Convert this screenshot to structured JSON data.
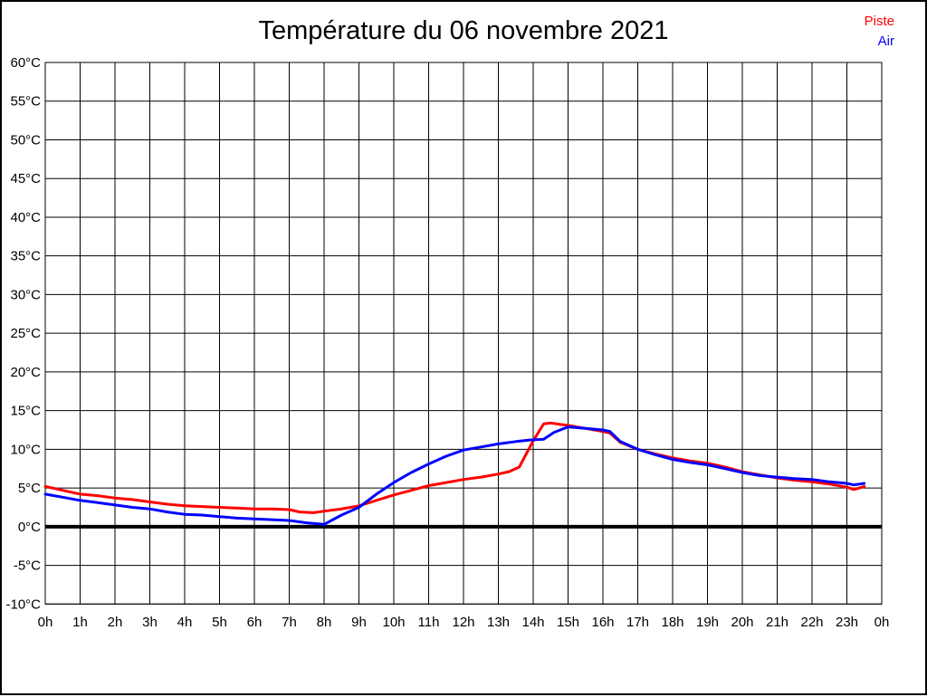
{
  "title": "Température du 06 novembre 2021",
  "legend": {
    "position": "top-right",
    "items": [
      {
        "label": "Piste",
        "color": "#ff0000"
      },
      {
        "label": "Air",
        "color": "#0000ff"
      }
    ]
  },
  "chart_data": {
    "type": "line",
    "title": "Température du 06 novembre 2021",
    "xlabel": "",
    "ylabel": "",
    "xlim": [
      0,
      24
    ],
    "ylim": [
      -10,
      60
    ],
    "grid": true,
    "grid_color": "#000000",
    "background_color": "#ffffff",
    "legend_position": "top-right",
    "reference_line": {
      "value": 0,
      "color": "#000000",
      "width": 4
    },
    "x_ticks": [
      {
        "value": 0,
        "label": "0h"
      },
      {
        "value": 1,
        "label": "1h"
      },
      {
        "value": 2,
        "label": "2h"
      },
      {
        "value": 3,
        "label": "3h"
      },
      {
        "value": 4,
        "label": "4h"
      },
      {
        "value": 5,
        "label": "5h"
      },
      {
        "value": 6,
        "label": "6h"
      },
      {
        "value": 7,
        "label": "7h"
      },
      {
        "value": 8,
        "label": "8h"
      },
      {
        "value": 9,
        "label": "9h"
      },
      {
        "value": 10,
        "label": "10h"
      },
      {
        "value": 11,
        "label": "11h"
      },
      {
        "value": 12,
        "label": "12h"
      },
      {
        "value": 13,
        "label": "13h"
      },
      {
        "value": 14,
        "label": "14h"
      },
      {
        "value": 15,
        "label": "15h"
      },
      {
        "value": 16,
        "label": "16h"
      },
      {
        "value": 17,
        "label": "17h"
      },
      {
        "value": 18,
        "label": "18h"
      },
      {
        "value": 19,
        "label": "19h"
      },
      {
        "value": 20,
        "label": "20h"
      },
      {
        "value": 21,
        "label": "21h"
      },
      {
        "value": 22,
        "label": "22h"
      },
      {
        "value": 23,
        "label": "23h"
      },
      {
        "value": 24,
        "label": "0h"
      }
    ],
    "y_ticks": [
      {
        "value": 60,
        "label": "60°C"
      },
      {
        "value": 55,
        "label": "55°C"
      },
      {
        "value": 50,
        "label": "50°C"
      },
      {
        "value": 45,
        "label": "45°C"
      },
      {
        "value": 40,
        "label": "40°C"
      },
      {
        "value": 35,
        "label": "35°C"
      },
      {
        "value": 30,
        "label": "30°C"
      },
      {
        "value": 25,
        "label": "25°C"
      },
      {
        "value": 20,
        "label": "20°C"
      },
      {
        "value": 15,
        "label": "15°C"
      },
      {
        "value": 10,
        "label": "10°C"
      },
      {
        "value": 5,
        "label": "5°C"
      },
      {
        "value": 0,
        "label": "0°C"
      },
      {
        "value": -5,
        "label": "-5°C"
      },
      {
        "value": -10,
        "label": "-10°C"
      }
    ],
    "series": [
      {
        "name": "Piste",
        "color": "#ff0000",
        "points": [
          [
            0,
            5.2
          ],
          [
            0.5,
            4.7
          ],
          [
            1,
            4.2
          ],
          [
            1.5,
            4.0
          ],
          [
            2,
            3.7
          ],
          [
            2.5,
            3.5
          ],
          [
            3,
            3.2
          ],
          [
            3.5,
            2.9
          ],
          [
            4,
            2.7
          ],
          [
            4.5,
            2.6
          ],
          [
            5,
            2.5
          ],
          [
            5.5,
            2.4
          ],
          [
            6,
            2.3
          ],
          [
            6.5,
            2.3
          ],
          [
            7,
            2.2
          ],
          [
            7.3,
            1.9
          ],
          [
            7.7,
            1.8
          ],
          [
            8,
            2.0
          ],
          [
            8.5,
            2.3
          ],
          [
            9,
            2.7
          ],
          [
            9.5,
            3.4
          ],
          [
            10,
            4.1
          ],
          [
            10.5,
            4.7
          ],
          [
            11,
            5.3
          ],
          [
            11.5,
            5.7
          ],
          [
            12,
            6.1
          ],
          [
            12.5,
            6.4
          ],
          [
            13,
            6.8
          ],
          [
            13.3,
            7.1
          ],
          [
            13.6,
            7.7
          ],
          [
            14,
            11.1
          ],
          [
            14.3,
            13.3
          ],
          [
            14.5,
            13.4
          ],
          [
            14.8,
            13.2
          ],
          [
            15,
            13.1
          ],
          [
            15.5,
            12.7
          ],
          [
            16,
            12.3
          ],
          [
            16.2,
            12.1
          ],
          [
            16.5,
            10.9
          ],
          [
            17,
            10.0
          ],
          [
            17.5,
            9.4
          ],
          [
            18,
            8.9
          ],
          [
            18.5,
            8.5
          ],
          [
            19,
            8.2
          ],
          [
            19.5,
            7.7
          ],
          [
            20,
            7.1
          ],
          [
            20.5,
            6.7
          ],
          [
            21,
            6.3
          ],
          [
            21.5,
            6.0
          ],
          [
            22,
            5.8
          ],
          [
            22.5,
            5.5
          ],
          [
            23,
            5.1
          ],
          [
            23.2,
            4.8
          ],
          [
            23.5,
            5.2
          ]
        ]
      },
      {
        "name": "Air",
        "color": "#0000ff",
        "points": [
          [
            0,
            4.2
          ],
          [
            0.5,
            3.8
          ],
          [
            1,
            3.4
          ],
          [
            1.5,
            3.1
          ],
          [
            2,
            2.8
          ],
          [
            2.5,
            2.5
          ],
          [
            3,
            2.3
          ],
          [
            3.5,
            1.9
          ],
          [
            4,
            1.6
          ],
          [
            4.5,
            1.5
          ],
          [
            5,
            1.3
          ],
          [
            5.5,
            1.1
          ],
          [
            6,
            1.0
          ],
          [
            6.5,
            0.9
          ],
          [
            7,
            0.8
          ],
          [
            7.5,
            0.5
          ],
          [
            8,
            0.3
          ],
          [
            8.5,
            1.5
          ],
          [
            9,
            2.5
          ],
          [
            9.5,
            4.2
          ],
          [
            10,
            5.7
          ],
          [
            10.5,
            7.0
          ],
          [
            11,
            8.1
          ],
          [
            11.5,
            9.1
          ],
          [
            12,
            9.9
          ],
          [
            12.5,
            10.3
          ],
          [
            13,
            10.7
          ],
          [
            13.5,
            11.0
          ],
          [
            13.9,
            11.2
          ],
          [
            14.3,
            11.3
          ],
          [
            14.6,
            12.2
          ],
          [
            15,
            12.9
          ],
          [
            15.5,
            12.7
          ],
          [
            16,
            12.5
          ],
          [
            16.2,
            12.3
          ],
          [
            16.5,
            11.0
          ],
          [
            17,
            10.0
          ],
          [
            17.5,
            9.3
          ],
          [
            18,
            8.7
          ],
          [
            18.5,
            8.3
          ],
          [
            19,
            8.0
          ],
          [
            19.5,
            7.5
          ],
          [
            20,
            7.0
          ],
          [
            20.5,
            6.6
          ],
          [
            21,
            6.4
          ],
          [
            21.5,
            6.2
          ],
          [
            22,
            6.1
          ],
          [
            22.5,
            5.8
          ],
          [
            23,
            5.6
          ],
          [
            23.2,
            5.4
          ],
          [
            23.5,
            5.6
          ]
        ]
      }
    ]
  }
}
